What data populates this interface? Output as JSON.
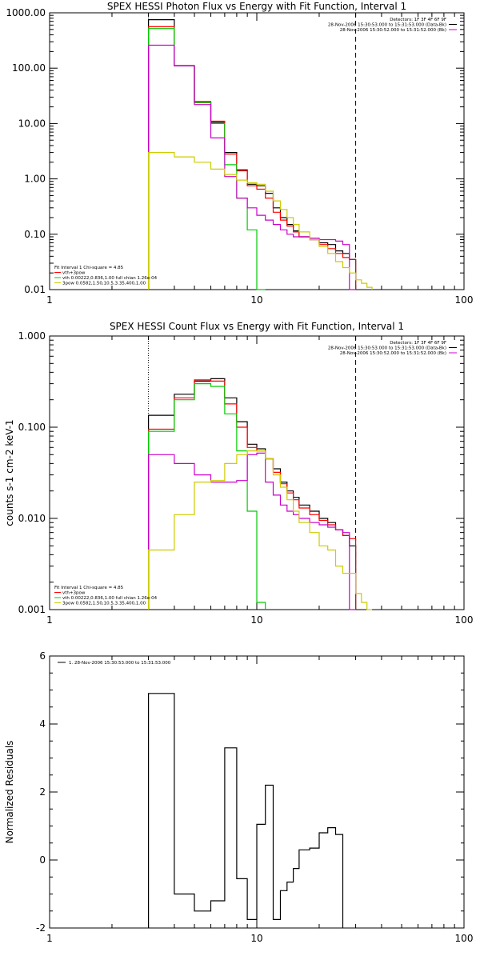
{
  "chart_data": [
    {
      "type": "line",
      "title": "SPEX HESSI Photon Flux vs Energy with Fit Function, Interval 1",
      "xscale": "log",
      "yscale": "log",
      "xlim": [
        1,
        100
      ],
      "ylim": [
        0.01,
        1000
      ],
      "xticks": [
        {
          "v": 1,
          "label": "1"
        },
        {
          "v": 10,
          "label": "10"
        },
        {
          "v": 100,
          "label": "100"
        }
      ],
      "yticks": [
        {
          "v": 0.01,
          "label": "0.01"
        },
        {
          "v": 0.1,
          "label": "0.10"
        },
        {
          "v": 1,
          "label": "1.00"
        },
        {
          "v": 10,
          "label": "10.00"
        },
        {
          "v": 100,
          "label": "100.00"
        },
        {
          "v": 1000,
          "label": "1000.00"
        }
      ],
      "ylabel": "",
      "vlines": [
        {
          "x": 3,
          "style": "dotted"
        },
        {
          "x": 30,
          "style": "dashed"
        }
      ],
      "legend_top": [
        "Detectors: 1F 3F 4F 6F 9F",
        "28-Nov-2006 15:30:53.000 to 15:31:53.000 (Data-Bk)",
        "28-Nov-2006 15:30:52.000 to 15:31:52.000 (Bk)"
      ],
      "legend_top_colors": [
        "",
        "#000000",
        "#cc00cc"
      ],
      "legend_bottom": [
        "Fit Interval 1   Chi-square = 4.85",
        "vth+3pow",
        "vth 0.00222,0.836,1.00  full chian 1.26e-04",
        "3pow 0.0582,1.50,10.5,3.35,400,1.00"
      ],
      "legend_bottom_colors": [
        "",
        "#ff0000",
        "#00cc00",
        "#cccc00"
      ],
      "edges": [
        3,
        4,
        5,
        6,
        7,
        8,
        9,
        10,
        11,
        12,
        13,
        14,
        15,
        16,
        18,
        20,
        22,
        24,
        26,
        28,
        30,
        32,
        34,
        36
      ],
      "series": [
        {
          "color": "#000000",
          "values": [
            750,
            110,
            24,
            10.5,
            3.0,
            1.45,
            0.8,
            0.75,
            0.55,
            0.3,
            0.2,
            0.15,
            0.115,
            0.09,
            0.08,
            0.07,
            0.065,
            0.05,
            0.045,
            0.035
          ]
        },
        {
          "color": "#ff0000",
          "values": [
            560,
            112,
            25,
            11.0,
            2.8,
            1.4,
            0.75,
            0.65,
            0.45,
            0.25,
            0.18,
            0.14,
            0.11,
            0.09,
            0.08,
            0.065,
            0.055,
            0.045,
            0.038,
            0.035
          ]
        },
        {
          "color": "#00cc00",
          "values": [
            520,
            110,
            24,
            10.0,
            1.8,
            0.45,
            0.12,
            0.01
          ]
        },
        {
          "color": "#cc00cc",
          "values": [
            260,
            110,
            22,
            5.5,
            1.1,
            0.45,
            0.3,
            0.22,
            0.18,
            0.15,
            0.12,
            0.1,
            0.09,
            0.09,
            0.085,
            0.08,
            0.08,
            0.075,
            0.065,
            0.01
          ]
        },
        {
          "color": "#cccc00",
          "values": [
            3.0,
            2.5,
            2.0,
            1.5,
            1.2,
            0.95,
            0.85,
            0.8,
            0.6,
            0.4,
            0.28,
            0.2,
            0.15,
            0.11,
            0.08,
            0.06,
            0.045,
            0.032,
            0.025,
            0.02,
            0.015,
            0.013,
            0.011
          ]
        }
      ]
    },
    {
      "type": "line",
      "title": "SPEX HESSI Count Flux vs Energy with Fit Function, Interval 1",
      "xscale": "log",
      "yscale": "log",
      "xlim": [
        1,
        100
      ],
      "ylim": [
        0.001,
        1
      ],
      "xticks": [
        {
          "v": 1,
          "label": "1"
        },
        {
          "v": 10,
          "label": "10"
        },
        {
          "v": 100,
          "label": "100"
        }
      ],
      "yticks": [
        {
          "v": 0.001,
          "label": "0.001"
        },
        {
          "v": 0.01,
          "label": "0.010"
        },
        {
          "v": 0.1,
          "label": "0.100"
        },
        {
          "v": 1,
          "label": "1.000"
        }
      ],
      "ylabel": "counts s-1 cm-2 keV-1",
      "vlines": [
        {
          "x": 3,
          "style": "dotted"
        },
        {
          "x": 30,
          "style": "dashed"
        }
      ],
      "legend_top": [
        "Detectors: 1F 3F 4F 6F 9F",
        "28-Nov-2006 15:30:53.000 to 15:31:53.000 (Data-Bk)",
        "28-Nov-2006 15:30:52.000 to 15:31:52.000 (Bk)"
      ],
      "legend_top_colors": [
        "",
        "#000000",
        "#cc00cc"
      ],
      "legend_bottom": [
        "Fit Interval 1   Chi-square = 4.85",
        "vth+3pow",
        "vth 0.00222,0.836,1.00  full chian 1.26e-04",
        "3pow 0.0582,1.50,10.5,3.35,400,1.00"
      ],
      "legend_bottom_colors": [
        "",
        "#ff0000",
        "#00cc00",
        "#cccc00"
      ],
      "edges": [
        3,
        4,
        5,
        6,
        7,
        8,
        9,
        10,
        11,
        12,
        13,
        14,
        15,
        16,
        18,
        20,
        22,
        24,
        26,
        28,
        30,
        32,
        34,
        36
      ],
      "series": [
        {
          "color": "#000000",
          "values": [
            0.135,
            0.23,
            0.32,
            0.34,
            0.21,
            0.115,
            0.065,
            0.058,
            0.045,
            0.035,
            0.025,
            0.02,
            0.017,
            0.014,
            0.012,
            0.01,
            0.009,
            0.0075,
            0.0065,
            0.005
          ]
        },
        {
          "color": "#ff0000",
          "values": [
            0.095,
            0.21,
            0.33,
            0.32,
            0.18,
            0.1,
            0.06,
            0.055,
            0.045,
            0.032,
            0.024,
            0.019,
            0.016,
            0.013,
            0.011,
            0.0095,
            0.0085,
            0.0075,
            0.0065,
            0.006
          ]
        },
        {
          "color": "#00cc00",
          "values": [
            0.09,
            0.2,
            0.3,
            0.28,
            0.14,
            0.055,
            0.012,
            0.0012
          ]
        },
        {
          "color": "#cc00cc",
          "values": [
            0.05,
            0.04,
            0.03,
            0.025,
            0.025,
            0.026,
            0.05,
            0.052,
            0.025,
            0.018,
            0.014,
            0.012,
            0.011,
            0.01,
            0.009,
            0.0085,
            0.008,
            0.0075,
            0.007,
            0.001
          ]
        },
        {
          "color": "#cccc00",
          "values": [
            0.0045,
            0.011,
            0.025,
            0.026,
            0.04,
            0.05,
            0.055,
            0.055,
            0.045,
            0.03,
            0.022,
            0.016,
            0.012,
            0.009,
            0.007,
            0.005,
            0.0045,
            0.003,
            0.0025,
            0.0025,
            0.0015,
            0.0012,
            0.001
          ]
        }
      ]
    },
    {
      "type": "line",
      "title": "",
      "xscale": "log",
      "yscale": "linear",
      "xlim": [
        1,
        100
      ],
      "ylim": [
        -2,
        6
      ],
      "xticks": [
        {
          "v": 1,
          "label": "1"
        },
        {
          "v": 10,
          "label": "10"
        },
        {
          "v": 100,
          "label": "100"
        }
      ],
      "yticks": [
        {
          "v": -2,
          "label": "-2"
        },
        {
          "v": 0,
          "label": "0"
        },
        {
          "v": 2,
          "label": "2"
        },
        {
          "v": 4,
          "label": "4"
        },
        {
          "v": 6,
          "label": "6"
        }
      ],
      "ylabel": "Normalized Residuals",
      "vlines": [],
      "legend_top": [
        "1. 28-Nov-2006 15:30:53.000 to 15:31:53.000"
      ],
      "legend_top_colors": [
        "#000000"
      ],
      "legend_bottom": [],
      "legend_bottom_colors": [],
      "edges": [
        3,
        4,
        5,
        6,
        7,
        8,
        9,
        10,
        11,
        12,
        13,
        14,
        15,
        16,
        18,
        20,
        22,
        24,
        26,
        28,
        30
      ],
      "series": [
        {
          "color": "#000000",
          "values": [
            4.9,
            -1.0,
            -1.5,
            -1.2,
            3.3,
            -0.55,
            -1.75,
            1.05,
            2.2,
            -1.75,
            -0.9,
            -0.65,
            -0.25,
            0.3,
            0.35,
            0.8,
            0.95,
            0.75
          ]
        }
      ]
    }
  ]
}
